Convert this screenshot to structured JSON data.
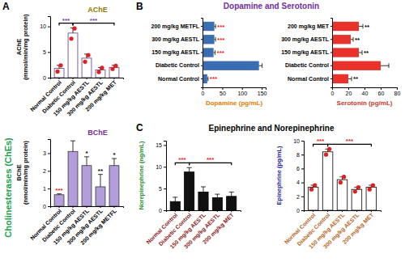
{
  "panels": [
    {
      "label": "A",
      "title": "Cholinesterases (ChEs)"
    },
    {
      "label": "B",
      "title": "Dopamine and Serotonin"
    },
    {
      "label": "C",
      "title": "Epinephrine and Norepinephrine"
    }
  ],
  "chart_data": [
    {
      "type": "bar",
      "title": "AChE",
      "y_label": "AChE\n(mmol/min/mg protein)",
      "categories": [
        "Normal Control",
        "Diabetic Control",
        "150 mg/kg AESTL",
        "300 mg/kg AESTL",
        "200 mg/kg MET"
      ],
      "values": [
        1.8,
        8.7,
        3.8,
        1.5,
        2.0
      ],
      "errors": [
        0.6,
        1.0,
        0.8,
        0.5,
        0.4
      ],
      "points": [
        [
          1.2,
          2.4
        ],
        [
          7.6,
          9.6
        ],
        [
          3.1,
          4.4
        ],
        [
          1.1,
          1.9
        ],
        [
          1.7,
          2.3
        ]
      ],
      "color": "#ffffff",
      "ylim": [
        0,
        12
      ],
      "yticks": [
        0,
        5,
        10
      ],
      "annotations": [
        {
          "text": "***",
          "span": [
            0,
            1
          ],
          "color": "#7030a0"
        },
        {
          "text": "***",
          "span": [
            1,
            4
          ],
          "color": "#7030a0"
        }
      ]
    },
    {
      "type": "bar",
      "title": "BChE",
      "y_label": "BChE\n(nmol/min/mg protein)",
      "categories": [
        "Normal Control",
        "Diabetic Control",
        "150 mg/kg AESTL",
        "300 mg/kg AESTL",
        "200 mg/kg METFL"
      ],
      "values": [
        0.65,
        3.1,
        2.3,
        1.1,
        2.3
      ],
      "errors": [
        0.05,
        0.6,
        0.5,
        0.7,
        0.4
      ],
      "color": "#b39ddb",
      "ylim": [
        0,
        3.8
      ],
      "yticks": [
        0,
        1,
        2,
        3
      ],
      "annotations": [
        {
          "text": "***",
          "span": [
            0,
            0
          ],
          "color": "#e02020"
        },
        {
          "text": "*",
          "span": [
            2,
            2
          ],
          "color": "#000000"
        },
        {
          "text": "**",
          "span": [
            3,
            3
          ],
          "color": "#000000"
        },
        {
          "text": "*",
          "span": [
            4,
            4
          ],
          "color": "#000000"
        }
      ]
    },
    {
      "type": "bar",
      "orientation": "horizontal",
      "x_label": "Dopamine (pg/mL)",
      "categories": [
        "200 mg/kg METFL",
        "300 mg/kg AESTL",
        "150 mg/kg AESTL",
        "Diabetic Control",
        "Normal Control"
      ],
      "values": [
        30,
        30,
        28,
        143,
        12
      ],
      "errors": [
        3,
        3,
        4,
        8,
        2
      ],
      "color": "#3b6db3",
      "xlim": [
        0,
        160
      ],
      "xticks": [
        0,
        50,
        100,
        150
      ],
      "annotations": [
        {
          "text": "***",
          "span": [
            0,
            0
          ],
          "color": "#e02020"
        },
        {
          "text": "***",
          "span": [
            1,
            1
          ],
          "color": "#e02020"
        },
        {
          "text": "***",
          "span": [
            2,
            2
          ],
          "color": "#e02020"
        },
        {
          "text": "***",
          "span": [
            4,
            4
          ],
          "color": "#e02020"
        }
      ]
    },
    {
      "type": "bar",
      "orientation": "horizontal",
      "x_label": "Serotonin (pg/mL)",
      "categories": [
        "200 mg/kg MET",
        "300 mg/kg AESTL",
        "150 mg/kg AESTL",
        "Diabetic Control",
        "Normal Control"
      ],
      "values": [
        33,
        23,
        33,
        60,
        20
      ],
      "errors": [
        5,
        3,
        4,
        10,
        4
      ],
      "color": "#e8322b",
      "xlim": [
        0,
        80
      ],
      "xticks": [
        0,
        20,
        40,
        60,
        80
      ],
      "annotations": [
        {
          "text": "**",
          "span": [
            0,
            0
          ],
          "color": "#000000"
        },
        {
          "text": "**",
          "span": [
            1,
            1
          ],
          "color": "#000000"
        },
        {
          "text": "**",
          "span": [
            2,
            2
          ],
          "color": "#000000"
        },
        {
          "text": "**",
          "span": [
            4,
            4
          ],
          "color": "#000000"
        }
      ]
    },
    {
      "type": "bar",
      "y_label": "Norepinephrine (ng/mL)",
      "categories": [
        "Normal Control",
        "Diabetic Control",
        "150 mg/kg AESTL",
        "300 mg/kg AESTL",
        "200 mg/kg MET"
      ],
      "values": [
        2.0,
        8.8,
        4.2,
        2.9,
        3.2
      ],
      "errors": [
        1.0,
        1.0,
        1.2,
        0.8,
        1.0
      ],
      "color": "#111111",
      "ylim": [
        0,
        16
      ],
      "yticks": [
        0,
        5,
        10,
        15
      ],
      "annotations": [
        {
          "text": "***",
          "span": [
            0,
            1
          ],
          "color": "#e02020"
        },
        {
          "text": "***",
          "span": [
            1,
            4
          ],
          "color": "#e02020"
        }
      ]
    },
    {
      "type": "bar",
      "y_label": "Epinephrine (pg/mL)",
      "categories": [
        "Normal Control",
        "Diabetic Control",
        "150 mg/kg AESTL",
        "300 mg/kg AESTL",
        "200 mg/kg MET"
      ],
      "values": [
        3.3,
        8.4,
        4.4,
        3.0,
        3.3
      ],
      "errors": [
        0.3,
        0.4,
        0.4,
        0.3,
        0.3
      ],
      "points": [
        [
          3.0,
          3.6
        ],
        [
          8.0,
          8.8
        ],
        [
          4.0,
          4.8
        ],
        [
          2.7,
          3.3
        ],
        [
          3.0,
          3.6
        ]
      ],
      "color": "#ffffff",
      "ylim": [
        0,
        10
      ],
      "yticks": [
        0,
        2,
        4,
        6,
        8,
        10
      ],
      "annotations": [
        {
          "text": "***",
          "span": [
            0,
            1
          ],
          "color": "#e02020"
        },
        {
          "text": "***",
          "span": [
            1,
            4
          ],
          "color": "#e02020"
        }
      ]
    }
  ]
}
